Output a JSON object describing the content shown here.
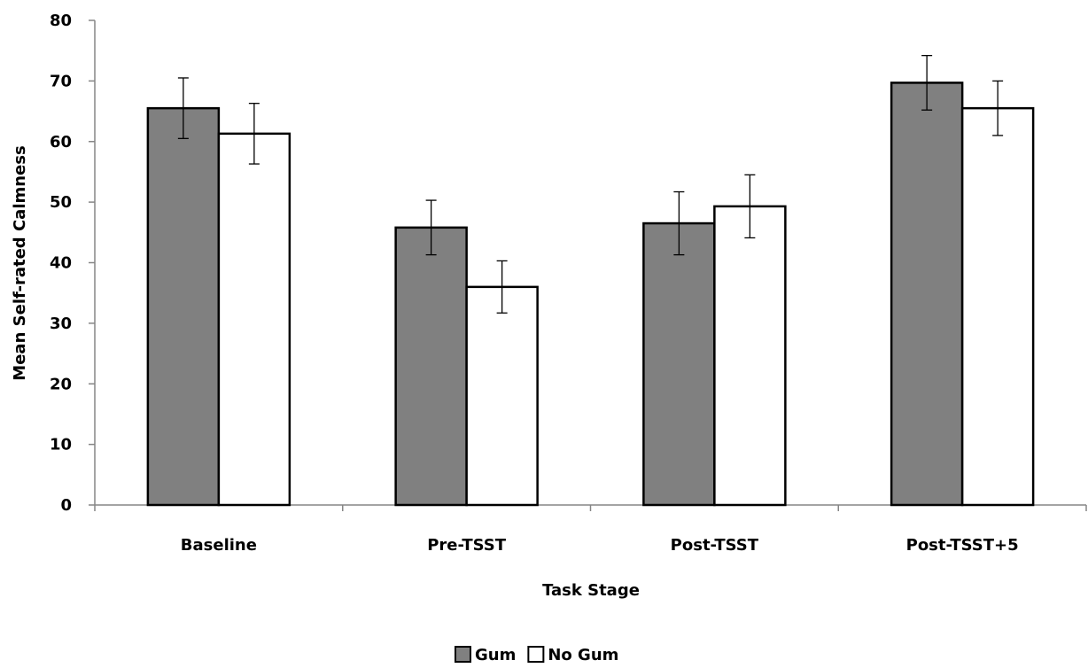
{
  "chart_data": {
    "type": "bar",
    "title": "",
    "xlabel": "Task Stage",
    "ylabel": "Mean Self-rated Calmness",
    "ylim": [
      0,
      80
    ],
    "yticks": [
      0,
      10,
      20,
      30,
      40,
      50,
      60,
      70,
      80
    ],
    "categories": [
      "Baseline",
      "Pre-TSST",
      "Post-TSST",
      "Post-TSST+5"
    ],
    "series": [
      {
        "name": "Gum",
        "color": "#808080",
        "values": [
          65.5,
          45.8,
          46.5,
          69.7
        ],
        "error": [
          5.0,
          4.5,
          5.2,
          4.5
        ]
      },
      {
        "name": "No Gum",
        "color": "#ffffff",
        "values": [
          61.3,
          36.0,
          49.3,
          65.5
        ],
        "error": [
          5.0,
          4.3,
          5.2,
          4.5
        ]
      }
    ],
    "legend_position": "bottom-center",
    "grid": false
  }
}
